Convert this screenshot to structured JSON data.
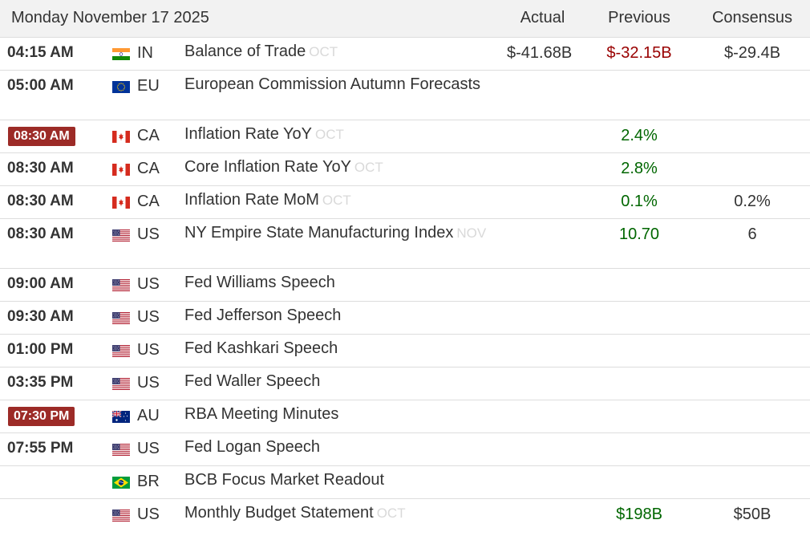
{
  "header": {
    "date": "Monday November 17 2025",
    "actual": "Actual",
    "previous": "Previous",
    "consensus": "Consensus"
  },
  "colors": {
    "badge_bg": "#9c2b27",
    "previous_up": "#006600",
    "previous_down": "#990000",
    "header_bg": "#f2f2f2"
  },
  "rows": [
    {
      "time": "04:15 AM",
      "highlight": false,
      "flag": "india-flag-icon",
      "country": "IN",
      "event": "Balance of Trade",
      "ref": "OCT",
      "actual": "$-41.68B",
      "previous": "$-32.15B",
      "previous_color": "red",
      "consensus": "$-29.4B"
    },
    {
      "time": "05:00 AM",
      "highlight": false,
      "flag": "eu-flag-icon",
      "country": "EU",
      "event": "European Commission Autumn Forecasts",
      "ref": "",
      "actual": "",
      "previous": "",
      "previous_color": "",
      "consensus": ""
    },
    {
      "time": "08:30 AM",
      "highlight": true,
      "flag": "canada-flag-icon",
      "country": "CA",
      "event": "Inflation Rate YoY",
      "ref": "OCT",
      "actual": "",
      "previous": "2.4%",
      "previous_color": "green",
      "consensus": ""
    },
    {
      "time": "08:30 AM",
      "highlight": false,
      "flag": "canada-flag-icon",
      "country": "CA",
      "event": "Core Inflation Rate YoY",
      "ref": "OCT",
      "actual": "",
      "previous": "2.8%",
      "previous_color": "green",
      "consensus": ""
    },
    {
      "time": "08:30 AM",
      "highlight": false,
      "flag": "canada-flag-icon",
      "country": "CA",
      "event": "Inflation Rate MoM",
      "ref": "OCT",
      "actual": "",
      "previous": "0.1%",
      "previous_color": "green",
      "consensus": "0.2%"
    },
    {
      "time": "08:30 AM",
      "highlight": false,
      "flag": "usa-flag-icon",
      "country": "US",
      "event": "NY Empire State Manufacturing Index",
      "ref": "NOV",
      "actual": "",
      "previous": "10.70",
      "previous_color": "green",
      "consensus": "6"
    },
    {
      "time": "09:00 AM",
      "highlight": false,
      "flag": "usa-flag-icon",
      "country": "US",
      "event": "Fed Williams Speech",
      "ref": "",
      "actual": "",
      "previous": "",
      "previous_color": "",
      "consensus": ""
    },
    {
      "time": "09:30 AM",
      "highlight": false,
      "flag": "usa-flag-icon",
      "country": "US",
      "event": "Fed Jefferson Speech",
      "ref": "",
      "actual": "",
      "previous": "",
      "previous_color": "",
      "consensus": ""
    },
    {
      "time": "01:00 PM",
      "highlight": false,
      "flag": "usa-flag-icon",
      "country": "US",
      "event": "Fed Kashkari Speech",
      "ref": "",
      "actual": "",
      "previous": "",
      "previous_color": "",
      "consensus": ""
    },
    {
      "time": "03:35 PM",
      "highlight": false,
      "flag": "usa-flag-icon",
      "country": "US",
      "event": "Fed Waller Speech",
      "ref": "",
      "actual": "",
      "previous": "",
      "previous_color": "",
      "consensus": ""
    },
    {
      "time": "07:30 PM",
      "highlight": true,
      "flag": "australia-flag-icon",
      "country": "AU",
      "event": "RBA Meeting Minutes",
      "ref": "",
      "actual": "",
      "previous": "",
      "previous_color": "",
      "consensus": ""
    },
    {
      "time": "07:55 PM",
      "highlight": false,
      "flag": "usa-flag-icon",
      "country": "US",
      "event": "Fed Logan Speech",
      "ref": "",
      "actual": "",
      "previous": "",
      "previous_color": "",
      "consensus": ""
    },
    {
      "time": "",
      "highlight": false,
      "flag": "brazil-flag-icon",
      "country": "BR",
      "event": "BCB Focus Market Readout",
      "ref": "",
      "actual": "",
      "previous": "",
      "previous_color": "",
      "consensus": ""
    },
    {
      "time": "",
      "highlight": false,
      "flag": "usa-flag-icon",
      "country": "US",
      "event": "Monthly Budget Statement",
      "ref": "OCT",
      "actual": "",
      "previous": "$198B",
      "previous_color": "green",
      "consensus": "$50B"
    }
  ]
}
